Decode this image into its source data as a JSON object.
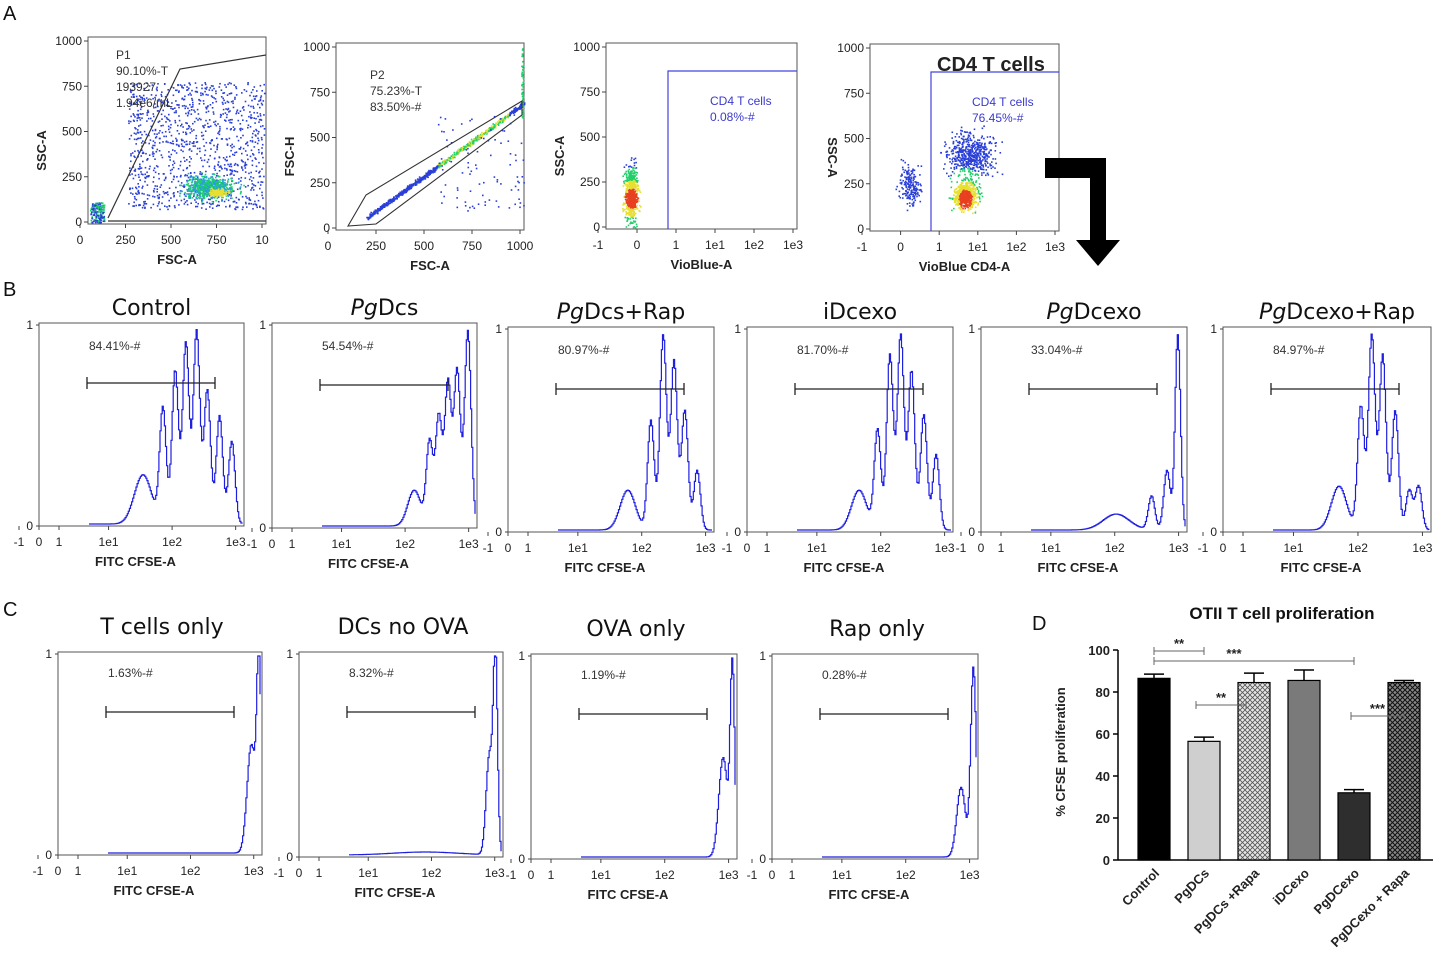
{
  "panel_labels": [
    "A",
    "B",
    "C",
    "D"
  ],
  "colors": {
    "trace": "#1f1fe0",
    "gate_line": "#222222",
    "bar_black": "#000000",
    "bar_light": "#cfcfcf",
    "bar_mid": "#7a7a7a",
    "bar_dark": "#2e2e2e"
  },
  "panel_a": [
    {
      "xlabel": "FSC-A",
      "ylabel": "SSC-A",
      "xticks": [
        "0",
        "250",
        "500",
        "750",
        "10"
      ],
      "yticks": [
        "0",
        "250",
        "500",
        "750",
        "1000"
      ],
      "gate_lines": [
        "P1",
        "90.10%-T",
        "193927",
        "1.94e6/mL"
      ]
    },
    {
      "xlabel": "FSC-A",
      "ylabel": "FSC-H",
      "xticks": [
        "0",
        "250",
        "500",
        "750",
        "1000"
      ],
      "yticks": [
        "0",
        "250",
        "500",
        "750",
        "1000"
      ],
      "gate_lines": [
        "P2",
        "75.23%-T",
        "83.50%-#"
      ]
    },
    {
      "xlabel": "VioBlue-A",
      "ylabel": "SSC-A",
      "xticks": [
        "-1",
        "0",
        "1",
        "1e1",
        "1e2",
        "1e3"
      ],
      "yticks": [
        "0",
        "250",
        "500",
        "750",
        "1000"
      ],
      "gate_lines": [
        "CD4 T cells",
        "0.08%-#"
      ]
    },
    {
      "xlabel": "VioBlue CD4-A",
      "ylabel": "SSC-A",
      "xticks": [
        "-1",
        "0",
        "1",
        "1e1",
        "1e2",
        "1e3"
      ],
      "yticks": [
        "0",
        "250",
        "500",
        "750",
        "1000"
      ],
      "gate_lines": [
        "CD4 T cells",
        "76.45%-#"
      ],
      "header": "CD4 T cells"
    }
  ],
  "panel_b": [
    {
      "title_italic": "",
      "title_rest": "Control",
      "pct": "84.41%-#",
      "xlabel": "FITC CFSE-A"
    },
    {
      "title_italic": "Pg",
      "title_rest": "Dcs",
      "pct": "54.54%-#",
      "xlabel": "FITC CFSE-A"
    },
    {
      "title_italic": "Pg",
      "title_rest": "Dcs+Rap",
      "pct": "80.97%-#",
      "xlabel": "FITC CFSE-A"
    },
    {
      "title_italic": "",
      "title_rest": "iDcexo",
      "pct": "81.70%-#",
      "xlabel": "FITC CFSE-A"
    },
    {
      "title_italic": "Pg",
      "title_rest": "Dcexo",
      "pct": "33.04%-#",
      "xlabel": "FITC CFSE-A"
    },
    {
      "title_italic": "Pg",
      "title_rest": "Dcexo+Rap",
      "pct": "84.97%-#",
      "xlabel": "FITC CFSE-A"
    }
  ],
  "panel_c": [
    {
      "title": "T cells only",
      "pct": "1.63%-#",
      "xlabel": "FITC CFSE-A"
    },
    {
      "title": "DCs no OVA",
      "pct": "8.32%-#",
      "xlabel": "FITC CFSE-A"
    },
    {
      "title": "OVA only",
      "pct": "1.19%-#",
      "xlabel": "FITC CFSE-A"
    },
    {
      "title": "Rap only",
      "pct": "0.28%-#",
      "xlabel": "FITC CFSE-A"
    }
  ],
  "hist_xticks": [
    "-1",
    "0",
    "1",
    "1e1",
    "1e2",
    "1e3"
  ],
  "hist_yticks": [
    "0",
    "1"
  ],
  "chart_data": {
    "type": "bar",
    "title": "OTII T cell proliferation",
    "xlabel": "",
    "ylabel": "% CFSE proliferation",
    "ylim": [
      0,
      100
    ],
    "yticks": [
      "0",
      "20",
      "40",
      "60",
      "80",
      "100"
    ],
    "categories": [
      "Control",
      "PgDCs",
      "PgDCs +Rapa",
      "iDCexo",
      "PgDCexo",
      "PgDCexo + Rapa"
    ],
    "values": [
      86.5,
      56.5,
      84.5,
      85.5,
      32.0,
      84.5
    ],
    "errors": [
      2.0,
      2.0,
      4.5,
      5.0,
      1.5,
      1.0
    ],
    "significance": [
      {
        "from": 0,
        "to": 1,
        "label": "**"
      },
      {
        "from": 0,
        "to": 4,
        "label": "***"
      },
      {
        "from": 1,
        "to": 2,
        "label": "**"
      },
      {
        "from": 4,
        "to": 5,
        "label": "***"
      }
    ]
  }
}
